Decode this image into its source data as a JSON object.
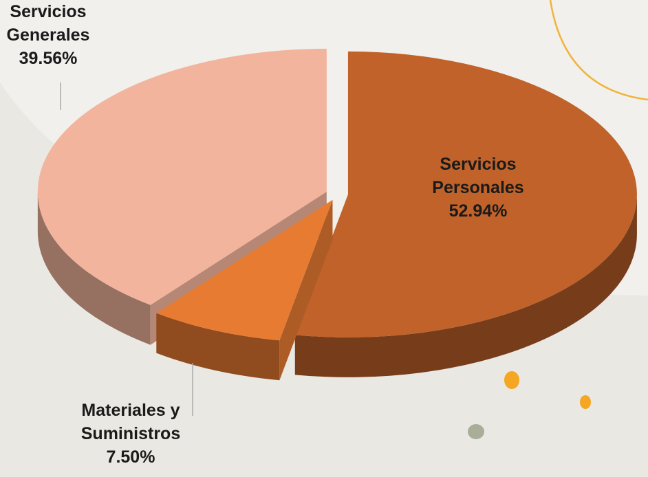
{
  "chart_data": {
    "type": "pie",
    "categories": [
      "Servicios Personales",
      "Materiales y Suministros",
      "Servicios Generales"
    ],
    "values": [
      52.94,
      7.5,
      39.56
    ],
    "value_labels": [
      "52.94%",
      "7.50%",
      "39.56%"
    ],
    "colors": [
      "#c0622a",
      "#e87b32",
      "#f2b49c"
    ]
  }
}
